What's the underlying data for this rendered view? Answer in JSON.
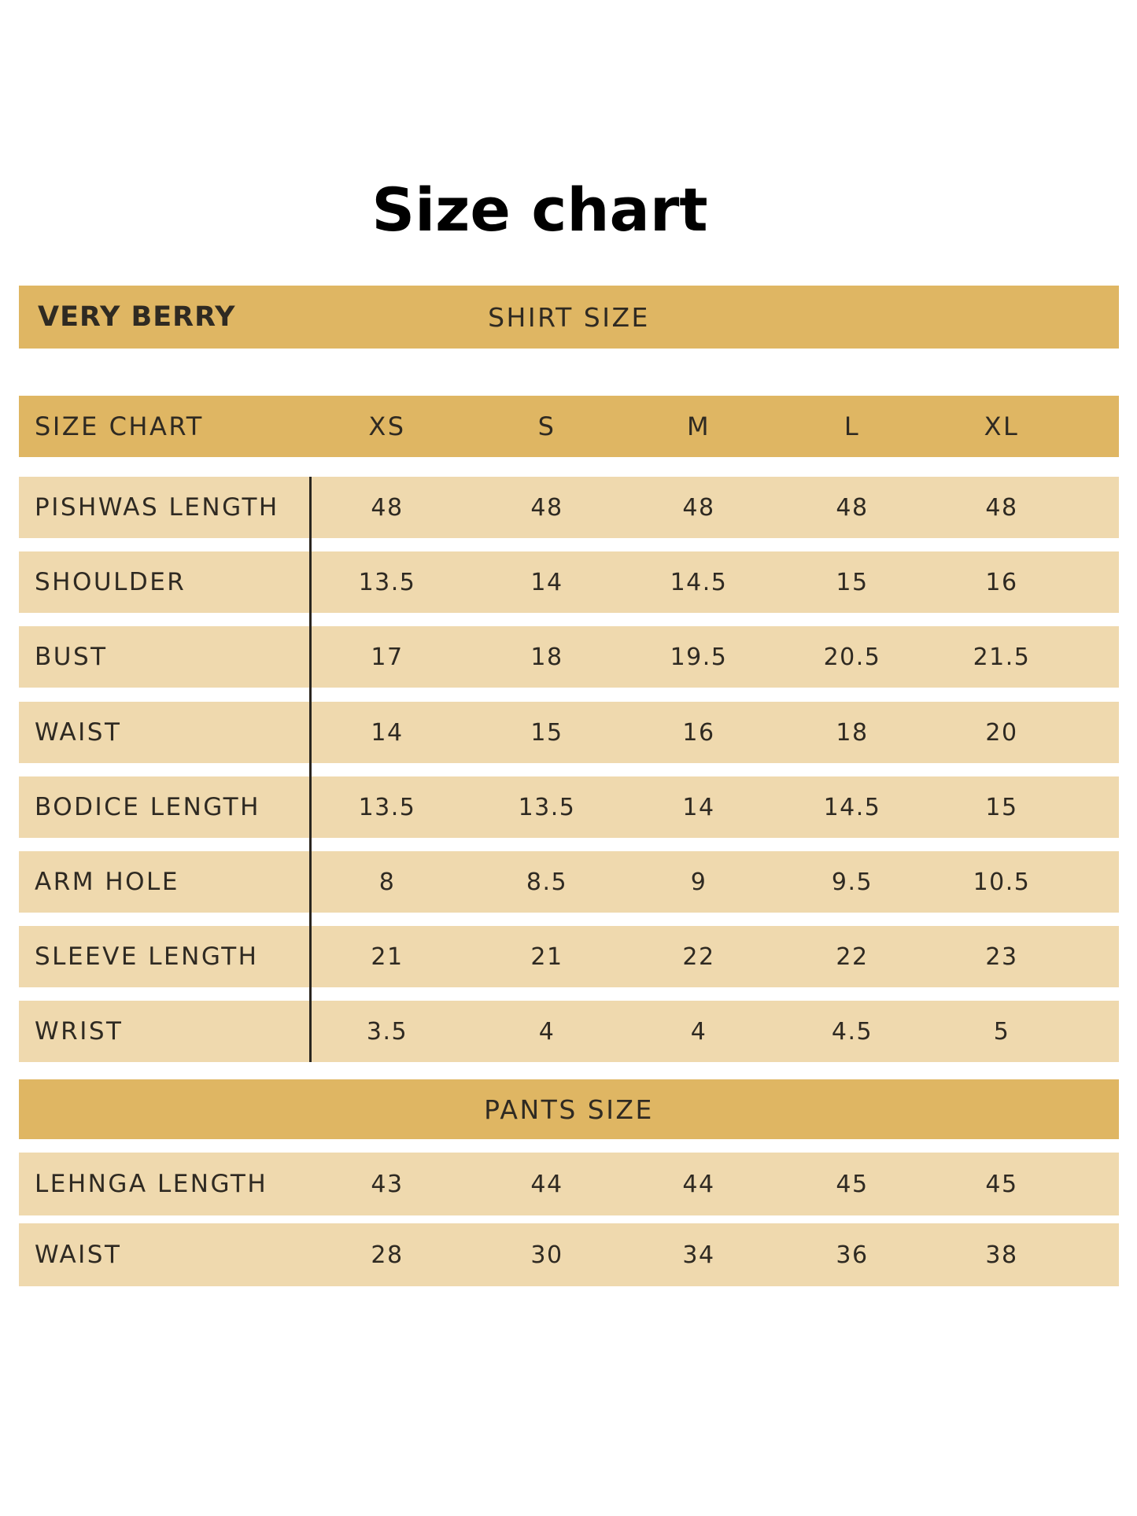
{
  "page": {
    "title": "Size chart"
  },
  "chart_data": {
    "type": "table",
    "brand": "VERY BERRY",
    "shirt_section": "SHIRT SIZE",
    "pants_section": "PANTS SIZE",
    "header_label": "SIZE CHART",
    "sizes": [
      "XS",
      "S",
      "M",
      "L",
      "XL"
    ],
    "shirt_rows": [
      {
        "label": "PISHWAS LENGTH",
        "values": [
          "48",
          "48",
          "48",
          "48",
          "48"
        ]
      },
      {
        "label": "SHOULDER",
        "values": [
          "13.5",
          "14",
          "14.5",
          "15",
          "16"
        ]
      },
      {
        "label": "BUST",
        "values": [
          "17",
          "18",
          "19.5",
          "20.5",
          "21.5"
        ]
      },
      {
        "label": "WAIST",
        "values": [
          "14",
          "15",
          "16",
          "18",
          "20"
        ]
      },
      {
        "label": "BODICE LENGTH",
        "values": [
          "13.5",
          "13.5",
          "14",
          "14.5",
          "15"
        ]
      },
      {
        "label": "ARM HOLE",
        "values": [
          "8",
          "8.5",
          "9",
          "9.5",
          "10.5"
        ]
      },
      {
        "label": "SLEEVE LENGTH",
        "values": [
          "21",
          "21",
          "22",
          "22",
          "23"
        ]
      },
      {
        "label": "WRIST",
        "values": [
          "3.5",
          "4",
          "4",
          "4.5",
          "5"
        ]
      }
    ],
    "pants_rows": [
      {
        "label": "LEHNGA LENGTH",
        "values": [
          "43",
          "44",
          "44",
          "45",
          "45"
        ]
      },
      {
        "label": "WAIST",
        "values": [
          "28",
          "30",
          "34",
          "36",
          "38"
        ]
      }
    ],
    "colors": {
      "header_band": "#dfb663",
      "row_fill": "#efd9ae",
      "text": "#2f2a22"
    }
  }
}
